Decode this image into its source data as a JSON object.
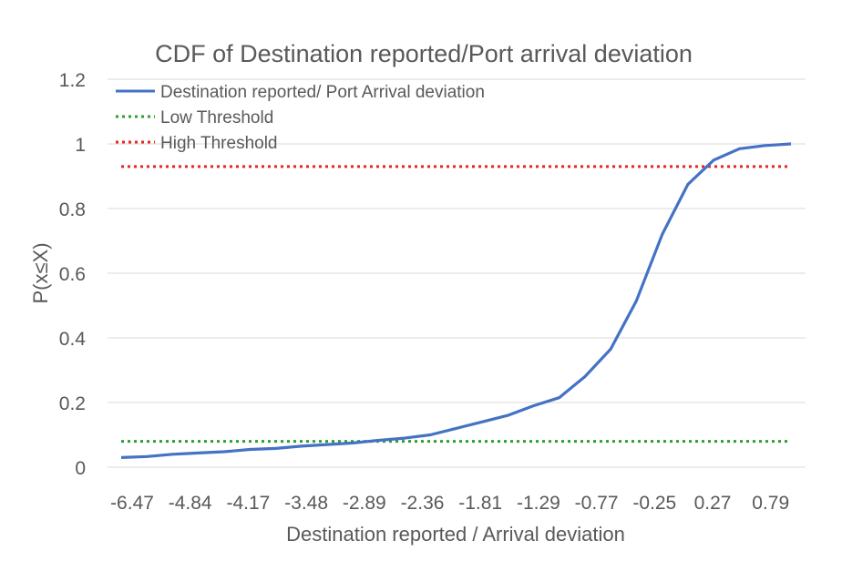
{
  "chart_data": {
    "type": "line",
    "title": "CDF of Destination reported/Port arrival deviation",
    "xlabel": "Destination reported  / Arrival deviation",
    "ylabel": "P(x≤X)",
    "ylim": [
      0,
      1.2
    ],
    "yticks": [
      "0",
      "0.2",
      "0.4",
      "0.6",
      "0.8",
      "1",
      "1.2"
    ],
    "xticks": [
      "-6.47",
      "-4.84",
      "-4.17",
      "-3.48",
      "-2.89",
      "-2.36",
      "-1.81",
      "-1.29",
      "-0.77",
      "-0.25",
      "0.27",
      "0.79"
    ],
    "grid": true,
    "legend_position": "top-left",
    "series": [
      {
        "name": "Destination reported/ Port Arrival deviation",
        "color": "#4472c4",
        "style": "solid",
        "values": [
          0.03,
          0.033,
          0.04,
          0.044,
          0.048,
          0.055,
          0.058,
          0.065,
          0.07,
          0.075,
          0.083,
          0.09,
          0.1,
          0.12,
          0.14,
          0.16,
          0.19,
          0.215,
          0.28,
          0.365,
          0.515,
          0.72,
          0.875,
          0.95,
          0.985,
          0.995,
          1.0
        ]
      },
      {
        "name": "Low Threshold",
        "color": "#2ca02c",
        "style": "dotted",
        "constant": 0.08
      },
      {
        "name": "High Threshold",
        "color": "#e8281e",
        "style": "dotted",
        "constant": 0.93
      }
    ]
  }
}
